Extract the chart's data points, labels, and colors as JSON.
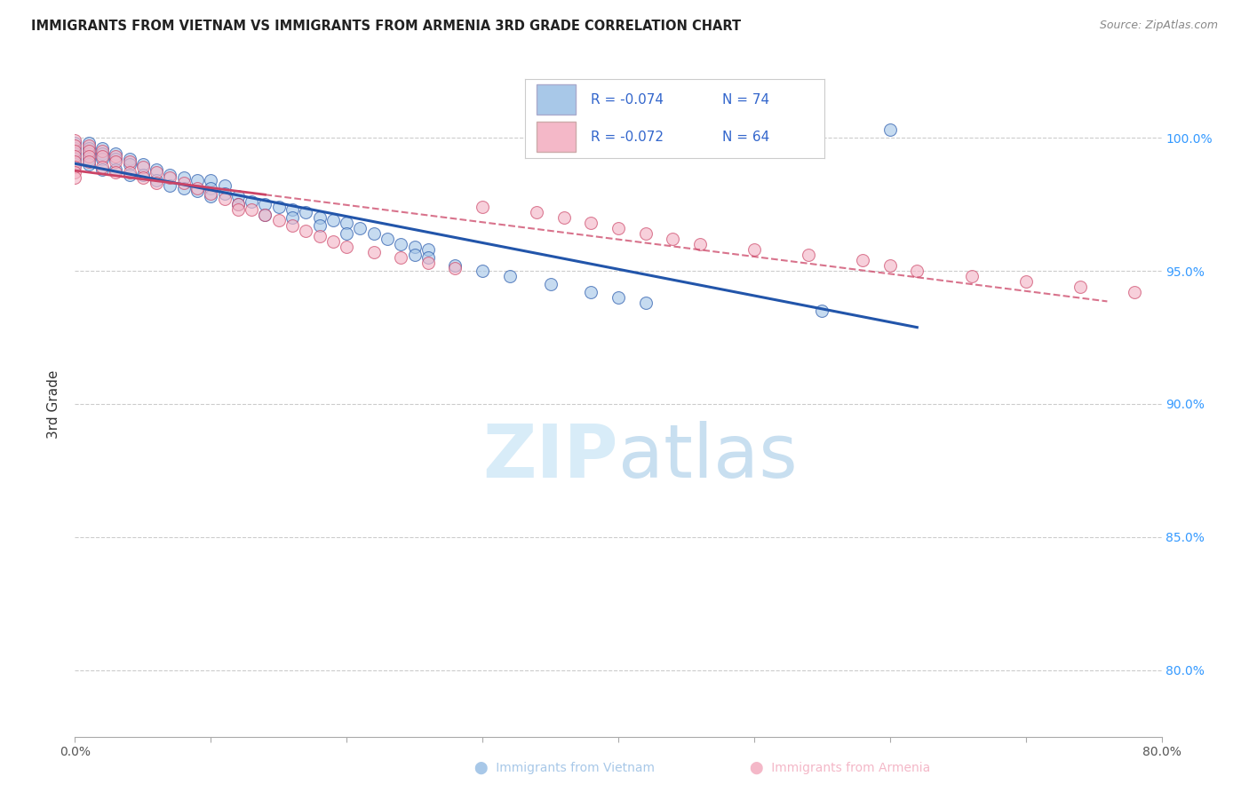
{
  "title": "IMMIGRANTS FROM VIETNAM VS IMMIGRANTS FROM ARMENIA 3RD GRADE CORRELATION CHART",
  "source": "Source: ZipAtlas.com",
  "ylabel": "3rd Grade",
  "ytick_labels": [
    "80.0%",
    "85.0%",
    "90.0%",
    "95.0%",
    "100.0%"
  ],
  "ytick_values": [
    0.8,
    0.85,
    0.9,
    0.95,
    1.0
  ],
  "xlim": [
    0.0,
    0.8
  ],
  "ylim": [
    0.775,
    1.025
  ],
  "legend_r_vietnam": "-0.074",
  "legend_n_vietnam": "74",
  "legend_r_armenia": "-0.072",
  "legend_n_armenia": "64",
  "color_vietnam": "#a8c8e8",
  "color_armenia": "#f4b8c8",
  "color_trendline_vietnam": "#2255aa",
  "color_trendline_armenia": "#cc4466",
  "watermark_color": "#d8ecf8",
  "vietnam_x": [
    0.0,
    0.0,
    0.0,
    0.0,
    0.0,
    0.01,
    0.01,
    0.01,
    0.01,
    0.01,
    0.02,
    0.02,
    0.02,
    0.02,
    0.03,
    0.03,
    0.03,
    0.04,
    0.04,
    0.04,
    0.05,
    0.05,
    0.06,
    0.06,
    0.07,
    0.07,
    0.08,
    0.08,
    0.09,
    0.09,
    0.1,
    0.1,
    0.1,
    0.11,
    0.11,
    0.12,
    0.12,
    0.13,
    0.14,
    0.14,
    0.15,
    0.16,
    0.16,
    0.17,
    0.18,
    0.18,
    0.19,
    0.2,
    0.2,
    0.21,
    0.22,
    0.23,
    0.24,
    0.25,
    0.25,
    0.26,
    0.26,
    0.28,
    0.3,
    0.32,
    0.35,
    0.38,
    0.4,
    0.42,
    0.55,
    0.6
  ],
  "vietnam_y": [
    0.998,
    0.996,
    0.994,
    0.992,
    0.99,
    0.998,
    0.996,
    0.994,
    0.992,
    0.99,
    0.996,
    0.994,
    0.992,
    0.988,
    0.994,
    0.992,
    0.988,
    0.992,
    0.99,
    0.986,
    0.99,
    0.986,
    0.988,
    0.984,
    0.986,
    0.982,
    0.985,
    0.981,
    0.984,
    0.98,
    0.984,
    0.981,
    0.978,
    0.982,
    0.979,
    0.978,
    0.975,
    0.976,
    0.975,
    0.971,
    0.974,
    0.973,
    0.97,
    0.972,
    0.97,
    0.967,
    0.969,
    0.968,
    0.964,
    0.966,
    0.964,
    0.962,
    0.96,
    0.959,
    0.956,
    0.958,
    0.955,
    0.952,
    0.95,
    0.948,
    0.945,
    0.942,
    0.94,
    0.938,
    0.935,
    1.003
  ],
  "armenia_x": [
    0.0,
    0.0,
    0.0,
    0.0,
    0.0,
    0.0,
    0.0,
    0.0,
    0.01,
    0.01,
    0.01,
    0.01,
    0.02,
    0.02,
    0.02,
    0.03,
    0.03,
    0.03,
    0.04,
    0.04,
    0.05,
    0.05,
    0.06,
    0.06,
    0.07,
    0.08,
    0.09,
    0.1,
    0.11,
    0.12,
    0.12,
    0.13,
    0.14,
    0.15,
    0.16,
    0.17,
    0.18,
    0.19,
    0.2,
    0.22,
    0.24,
    0.26,
    0.28,
    0.3,
    0.34,
    0.36,
    0.38,
    0.4,
    0.42,
    0.44,
    0.46,
    0.5,
    0.54,
    0.58,
    0.6,
    0.62,
    0.66,
    0.7,
    0.74,
    0.78
  ],
  "armenia_y": [
    0.999,
    0.997,
    0.995,
    0.993,
    0.991,
    0.989,
    0.987,
    0.985,
    0.997,
    0.995,
    0.993,
    0.991,
    0.995,
    0.993,
    0.989,
    0.993,
    0.991,
    0.987,
    0.991,
    0.987,
    0.989,
    0.985,
    0.987,
    0.983,
    0.985,
    0.983,
    0.981,
    0.979,
    0.977,
    0.975,
    0.973,
    0.973,
    0.971,
    0.969,
    0.967,
    0.965,
    0.963,
    0.961,
    0.959,
    0.957,
    0.955,
    0.953,
    0.951,
    0.974,
    0.972,
    0.97,
    0.968,
    0.966,
    0.964,
    0.962,
    0.96,
    0.958,
    0.956,
    0.954,
    0.952,
    0.95,
    0.948,
    0.946,
    0.944,
    0.942
  ]
}
